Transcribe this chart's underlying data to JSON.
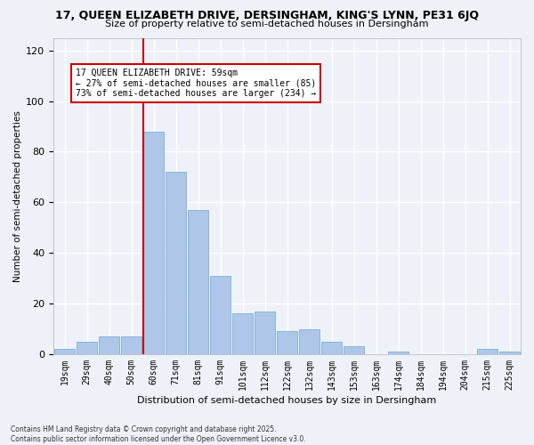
{
  "title1": "17, QUEEN ELIZABETH DRIVE, DERSINGHAM, KING'S LYNN, PE31 6JQ",
  "title2": "Size of property relative to semi-detached houses in Dersingham",
  "xlabel": "Distribution of semi-detached houses by size in Dersingham",
  "ylabel": "Number of semi-detached properties",
  "categories": [
    "19sqm",
    "29sqm",
    "40sqm",
    "50sqm",
    "60sqm",
    "71sqm",
    "81sqm",
    "91sqm",
    "101sqm",
    "112sqm",
    "122sqm",
    "132sqm",
    "143sqm",
    "153sqm",
    "163sqm",
    "174sqm",
    "184sqm",
    "194sqm",
    "204sqm",
    "215sqm",
    "225sqm"
  ],
  "values": [
    2,
    5,
    7,
    7,
    88,
    72,
    57,
    31,
    16,
    17,
    9,
    10,
    5,
    3,
    0,
    1,
    0,
    0,
    0,
    2,
    1
  ],
  "bar_color": "#aec6e8",
  "bar_edge_color": "#7bafd4",
  "annotation_text_line1": "17 QUEEN ELIZABETH DRIVE: 59sqm",
  "annotation_text_line2": "← 27% of semi-detached houses are smaller (85)",
  "annotation_text_line3": "73% of semi-detached houses are larger (234) →",
  "ylim": [
    0,
    125
  ],
  "yticks": [
    0,
    20,
    40,
    60,
    80,
    100,
    120
  ],
  "footer_line1": "Contains HM Land Registry data © Crown copyright and database right 2025.",
  "footer_line2": "Contains public sector information licensed under the Open Government Licence v3.0.",
  "bg_color": "#eef2f8",
  "grid_color": "#ffffff",
  "red_line_color": "#cc0000",
  "annotation_box_color": "#ffffff",
  "annotation_box_edge": "#cc0000",
  "red_line_bar_index": 4
}
